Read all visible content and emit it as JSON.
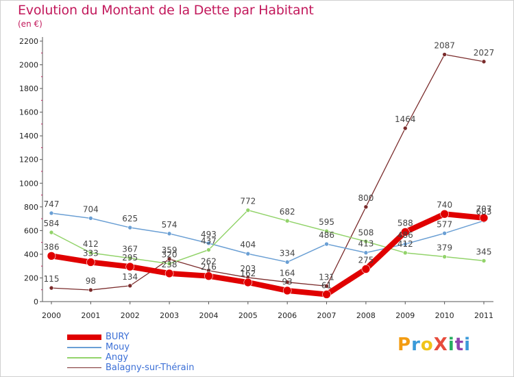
{
  "header": {
    "title": "Evolution du Montant de la Dette par Habitant",
    "unit": "(en €)"
  },
  "logo": {
    "text": "ProXiti",
    "letters": [
      {
        "ch": "P",
        "color": "#f39c12"
      },
      {
        "ch": "r",
        "color": "#3a9ad9"
      },
      {
        "ch": "o",
        "color": "#f0c419"
      },
      {
        "ch": "X",
        "color": "#e74c3c"
      },
      {
        "ch": "i",
        "color": "#27ae60"
      },
      {
        "ch": "t",
        "color": "#8e44ad"
      },
      {
        "ch": "i",
        "color": "#3a9ad9"
      }
    ]
  },
  "chart_data": {
    "type": "line",
    "title": "Evolution du Montant de la Dette par Habitant",
    "ylabel": "(en €)",
    "xlabel": "",
    "x": [
      "2000",
      "2001",
      "2002",
      "2003",
      "2004",
      "2005",
      "2006",
      "2007",
      "2008",
      "2009",
      "2010",
      "2011"
    ],
    "ylim": [
      0,
      2200
    ],
    "yticks": [
      0,
      200,
      400,
      600,
      800,
      1000,
      1200,
      1400,
      1600,
      1800,
      2000,
      2200
    ],
    "grid": false,
    "legend_position": "bottom-left",
    "series": [
      {
        "name": "BURY",
        "color": "#e00000",
        "values": [
          386,
          333,
          295,
          238,
          216,
          162,
          93,
          61,
          275,
          588,
          740,
          707
        ],
        "labels": [
          "386",
          "333",
          "295",
          "238",
          "216",
          "162",
          "93",
          "61",
          "275",
          "588",
          "740",
          "707"
        ]
      },
      {
        "name": "Mouy",
        "color": "#6a9fd4",
        "values": [
          747,
          704,
          625,
          574,
          493,
          404,
          334,
          486,
          413,
          486,
          577,
          683
        ],
        "labels": [
          "747",
          "704",
          "625",
          "574",
          "493",
          "404",
          "334",
          "486",
          "413",
          "486",
          "577",
          "683"
        ]
      },
      {
        "name": "Angy",
        "color": "#92d36a",
        "values": [
          584,
          412,
          367,
          320,
          437,
          772,
          682,
          595,
          508,
          412,
          379,
          345
        ],
        "labels": [
          "584",
          "412",
          "367",
          "320",
          "437",
          "772",
          "682",
          "595",
          "508",
          "412",
          "379",
          "345"
        ]
      },
      {
        "name": "Balagny-sur-Thérain",
        "color": "#7a2b2b",
        "values": [
          115,
          98,
          134,
          359,
          262,
          203,
          164,
          131,
          800,
          1464,
          2087,
          2027
        ],
        "labels": [
          "115",
          "98",
          "134",
          "359",
          "262",
          "203",
          "164",
          "131",
          "800",
          "1464",
          "2087",
          "2027"
        ]
      }
    ]
  }
}
